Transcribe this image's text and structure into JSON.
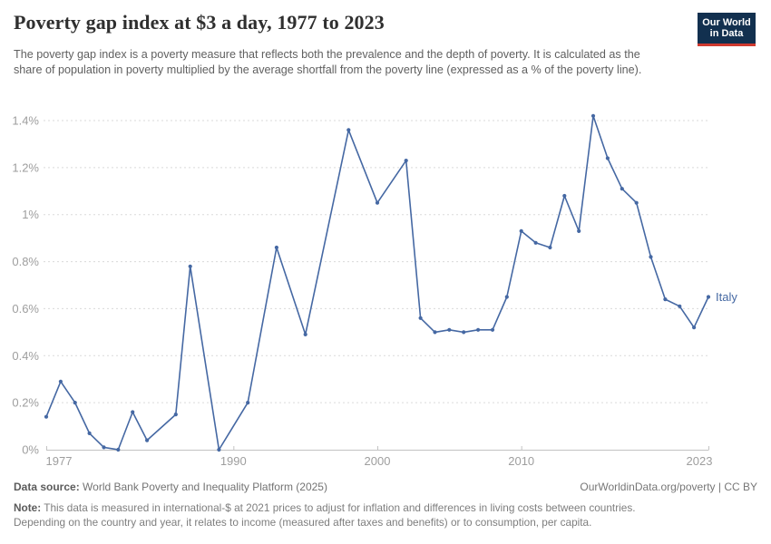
{
  "header": {
    "title": "Poverty gap index at $3 a day, 1977 to 2023",
    "logo_line1": "Our World",
    "logo_line2": "in Data",
    "logo_bg": "#12304f",
    "logo_accent": "#cf392f"
  },
  "subtitle": "The poverty gap index is a poverty measure that reflects both the prevalence and the depth of poverty. It is calculated as the share of population in poverty multiplied by the average shortfall from the poverty line (expressed as a % of the poverty line).",
  "chart_data": {
    "type": "line",
    "title": "Poverty gap index at $3 a day, 1977 to 2023",
    "entity": "Italy",
    "unit": "%",
    "xlabel": "",
    "ylabel": "",
    "xlim": [
      1977,
      2023
    ],
    "ylim": [
      0,
      1.4
    ],
    "grid": "horizontal-dashed",
    "legend_position": "line-end-label",
    "line_color": "#4568a3",
    "axis_label_color": "#9e9e9e",
    "xticks": [
      {
        "value": 1977,
        "label": "1977"
      },
      {
        "value": 1990,
        "label": "1990"
      },
      {
        "value": 2000,
        "label": "2000"
      },
      {
        "value": 2010,
        "label": "2010"
      },
      {
        "value": 2023,
        "label": "2023"
      }
    ],
    "yticks": [
      {
        "value": 0,
        "label": "0%"
      },
      {
        "value": 0.2,
        "label": "0.2%"
      },
      {
        "value": 0.4,
        "label": "0.4%"
      },
      {
        "value": 0.6,
        "label": "0.6%"
      },
      {
        "value": 0.8,
        "label": "0.8%"
      },
      {
        "value": 1,
        "label": "1%"
      },
      {
        "value": 1.2,
        "label": "1.2%"
      },
      {
        "value": 1.4,
        "label": "1.4%"
      }
    ],
    "series": [
      {
        "name": "Italy",
        "color": "#4568a3",
        "points": [
          [
            1977,
            0.14
          ],
          [
            1978,
            0.29
          ],
          [
            1979,
            0.2
          ],
          [
            1980,
            0.07
          ],
          [
            1981,
            0.01
          ],
          [
            1982,
            0.0
          ],
          [
            1983,
            0.16
          ],
          [
            1984,
            0.04
          ],
          [
            1986,
            0.15
          ],
          [
            1987,
            0.78
          ],
          [
            1989,
            0.0
          ],
          [
            1991,
            0.2
          ],
          [
            1993,
            0.86
          ],
          [
            1995,
            0.49
          ],
          [
            1998,
            1.36
          ],
          [
            2000,
            1.05
          ],
          [
            2002,
            1.23
          ],
          [
            2003,
            0.56
          ],
          [
            2004,
            0.5
          ],
          [
            2005,
            0.51
          ],
          [
            2006,
            0.5
          ],
          [
            2007,
            0.51
          ],
          [
            2008,
            0.51
          ],
          [
            2009,
            0.65
          ],
          [
            2010,
            0.93
          ],
          [
            2011,
            0.88
          ],
          [
            2012,
            0.86
          ],
          [
            2013,
            1.08
          ],
          [
            2014,
            0.93
          ],
          [
            2015,
            1.42
          ],
          [
            2016,
            1.24
          ],
          [
            2017,
            1.11
          ],
          [
            2018,
            1.05
          ],
          [
            2019,
            0.82
          ],
          [
            2020,
            0.64
          ],
          [
            2021,
            0.61
          ],
          [
            2022,
            0.52
          ],
          [
            2023,
            0.65
          ]
        ]
      }
    ]
  },
  "footer": {
    "source_label": "Data source:",
    "source_value": "World Bank Poverty and Inequality Platform (2025)",
    "link": "OurWorldinData.org/poverty | CC BY",
    "note_label": "Note:",
    "note_line1": "This data is measured in international-$ at 2021 prices to adjust for inflation and differences in living costs between countries.",
    "note_line2": "Depending on the country and year, it relates to income (measured after taxes and benefits) or to consumption, per capita."
  }
}
